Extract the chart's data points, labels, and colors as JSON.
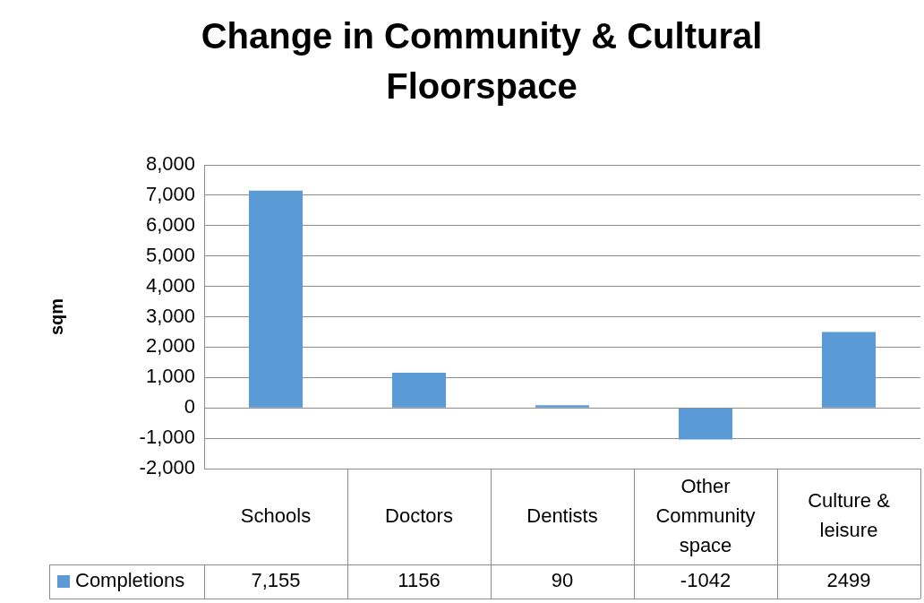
{
  "chart_data": {
    "type": "bar",
    "title": "Change in Community & Cultural Floorspace",
    "ylabel": "sqm",
    "categories": [
      "Schools",
      "Doctors",
      "Dentists",
      "Other Community space",
      "Culture & leisure"
    ],
    "series": [
      {
        "name": "Completions",
        "color": "#5b9bd5",
        "values": [
          7155,
          1156,
          90,
          -1042,
          2499
        ],
        "value_labels": [
          "7,155",
          "1156",
          "90",
          "-1042",
          "2499"
        ]
      }
    ],
    "ylim": [
      -2000,
      8000
    ],
    "yticks": [
      {
        "value": -2000,
        "label": "-2,000"
      },
      {
        "value": -1000,
        "label": "-1,000"
      },
      {
        "value": 0,
        "label": "0"
      },
      {
        "value": 1000,
        "label": "1,000"
      },
      {
        "value": 2000,
        "label": "2,000"
      },
      {
        "value": 3000,
        "label": "3,000"
      },
      {
        "value": 4000,
        "label": "4,000"
      },
      {
        "value": 5000,
        "label": "5,000"
      },
      {
        "value": 6000,
        "label": "6,000"
      },
      {
        "value": 7000,
        "label": "7,000"
      },
      {
        "value": 8000,
        "label": "8,000"
      }
    ],
    "grid": "y",
    "legend": "bottom"
  }
}
